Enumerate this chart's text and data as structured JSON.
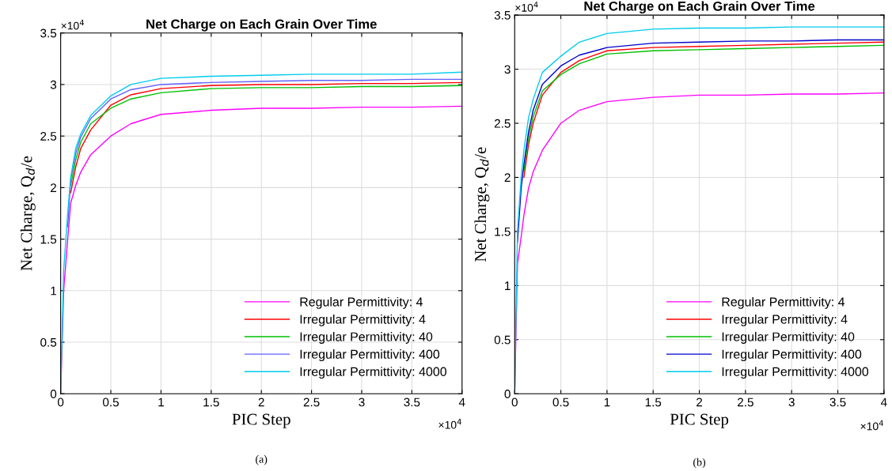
{
  "chart_data": [
    {
      "type": "line",
      "title": "Net Charge on Each Grain Over Time",
      "xlabel": "PIC Step",
      "ylabel": "Net Charge, Q$_{d}$/e",
      "x": [
        0,
        0.03,
        0.07,
        0.1,
        0.15,
        0.2,
        0.3,
        0.5,
        0.7,
        1,
        1.5,
        2,
        2.5,
        3,
        3.5,
        4
      ],
      "series": [
        {
          "name": "Regular Permittivity: 4",
          "color": "#ff00ff",
          "values": [
            0,
            1.0,
            1.5,
            1.85,
            2.02,
            2.15,
            2.32,
            2.5,
            2.62,
            2.71,
            2.75,
            2.77,
            2.77,
            2.78,
            2.78,
            2.79
          ]
        },
        {
          "name": "Irregular Permittivity: 4",
          "color": "#ff0000",
          "values": [
            null,
            null,
            null,
            1.95,
            2.2,
            2.38,
            2.56,
            2.8,
            2.9,
            2.96,
            2.99,
            3.0,
            3.0,
            3.01,
            3.01,
            3.02
          ]
        },
        {
          "name": "Irregular Permittivity: 40",
          "color": "#00c000",
          "values": [
            null,
            null,
            null,
            2.02,
            2.27,
            2.44,
            2.62,
            2.77,
            2.86,
            2.92,
            2.96,
            2.97,
            2.97,
            2.98,
            2.98,
            2.99
          ]
        },
        {
          "name": "Irregular Permittivity: 400",
          "color": "#6060ff",
          "values": [
            null,
            null,
            1.62,
            2.08,
            2.33,
            2.49,
            2.67,
            2.86,
            2.95,
            3.0,
            3.02,
            3.03,
            3.04,
            3.04,
            3.05,
            3.05
          ]
        },
        {
          "name": "Irregular Permittivity: 4000",
          "color": "#00ccee",
          "values": [
            0,
            1.2,
            1.75,
            2.1,
            2.38,
            2.52,
            2.7,
            2.89,
            3.0,
            3.06,
            3.08,
            3.09,
            3.1,
            3.1,
            3.1,
            3.12
          ]
        }
      ],
      "xlim": [
        0,
        4
      ],
      "ylim": [
        0,
        3.5
      ],
      "xticks": [
        0,
        0.5,
        1,
        1.5,
        2,
        2.5,
        3,
        3.5,
        4
      ],
      "yticks": [
        0,
        0.5,
        1,
        1.5,
        2,
        2.5,
        3,
        3.5
      ],
      "grid": true,
      "legend": "bottom right",
      "annotations": [
        "×10$^{4}$",
        "×10$^{4}$",
        "(a)"
      ]
    },
    {
      "type": "line",
      "title": "Net Charge on Each Grain Over Time",
      "xlabel": "PIC Step",
      "ylabel": "Net Charge, Q$_{d}$/e",
      "x": [
        0,
        0.03,
        0.07,
        0.1,
        0.15,
        0.2,
        0.3,
        0.5,
        0.7,
        1,
        1.5,
        2,
        2.5,
        3,
        3.5,
        4
      ],
      "series": [
        {
          "name": "Regular Permittivity: 4",
          "color": "#ff00ff",
          "values": [
            0,
            1.2,
            1.45,
            1.65,
            1.9,
            2.05,
            2.25,
            2.5,
            2.62,
            2.7,
            2.74,
            2.76,
            2.76,
            2.77,
            2.77,
            2.78
          ]
        },
        {
          "name": "Irregular Permittivity: 4",
          "color": "#ff0000",
          "values": [
            null,
            null,
            null,
            2.0,
            2.3,
            2.5,
            2.76,
            2.97,
            3.08,
            3.17,
            3.2,
            3.21,
            3.22,
            3.23,
            3.24,
            3.25
          ]
        },
        {
          "name": "Irregular Permittivity: 40",
          "color": "#00c000",
          "values": [
            null,
            null,
            null,
            2.06,
            2.36,
            2.56,
            2.8,
            2.95,
            3.05,
            3.14,
            3.17,
            3.18,
            3.19,
            3.2,
            3.21,
            3.22
          ]
        },
        {
          "name": "Irregular Permittivity: 400",
          "color": "#0000cc",
          "values": [
            null,
            1.4,
            1.9,
            2.12,
            2.42,
            2.62,
            2.86,
            3.03,
            3.13,
            3.2,
            3.24,
            3.25,
            3.26,
            3.26,
            3.27,
            3.27
          ]
        },
        {
          "name": "Irregular Permittivity: 4000",
          "color": "#00ccee",
          "values": [
            0,
            1.5,
            2.0,
            2.25,
            2.55,
            2.72,
            2.97,
            3.12,
            3.25,
            3.33,
            3.37,
            3.38,
            3.38,
            3.39,
            3.39,
            3.39
          ]
        }
      ],
      "xlim": [
        0,
        4
      ],
      "ylim": [
        0,
        3.5
      ],
      "xticks": [
        0,
        0.5,
        1,
        1.5,
        2,
        2.5,
        3,
        3.5,
        4
      ],
      "yticks": [
        0,
        0.5,
        1,
        1.5,
        2,
        2.5,
        3,
        3.5
      ],
      "grid": true,
      "legend": "bottom right",
      "annotations": [
        "×10$^{4}$",
        "×10$^{4}$",
        "(b)"
      ]
    }
  ]
}
